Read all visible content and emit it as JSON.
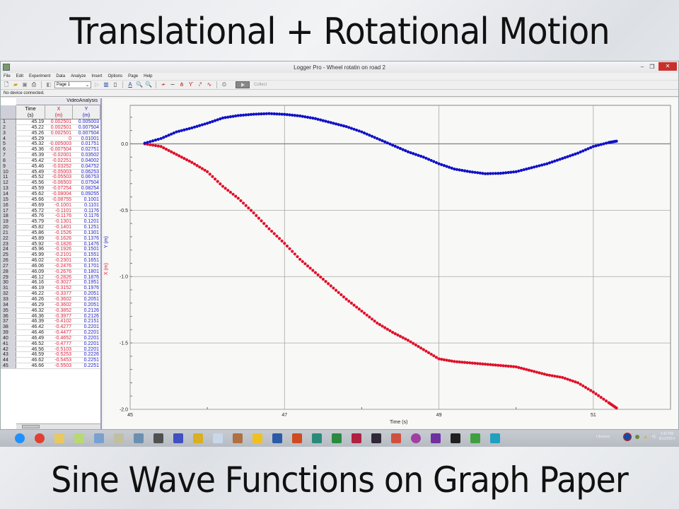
{
  "slide": {
    "title": "Translational + Rotational Motion",
    "subtitle": "Sine Wave Functions on Graph Paper"
  },
  "window": {
    "title": "Logger Pro - Wheel rotatin on road 2",
    "controls": {
      "minimize": "–",
      "restore": "❐",
      "close": "✕"
    }
  },
  "menu": [
    "File",
    "Edit",
    "Experiment",
    "Data",
    "Analyze",
    "Insert",
    "Options",
    "Page",
    "Help"
  ],
  "toolbar": {
    "page_select": "Page 1",
    "collect_label": "Collect"
  },
  "status": "No device connected.",
  "table": {
    "dataset_name": "VideoAnalysis",
    "columns": [
      {
        "name": "Time",
        "unit": "(s)"
      },
      {
        "name": "X",
        "unit": "(m)"
      },
      {
        "name": "Y",
        "unit": "(m)"
      }
    ],
    "rows": [
      [
        "1",
        "45.19",
        "0.002501",
        "0.005003"
      ],
      [
        "2",
        "45.22",
        "0.002501",
        "0.007504"
      ],
      [
        "3",
        "45.26",
        "0.002501",
        "0.007504"
      ],
      [
        "4",
        "45.29",
        "0",
        "0.01001"
      ],
      [
        "5",
        "45.32",
        "-0.005003",
        "0.01751"
      ],
      [
        "6",
        "45.36",
        "-0.007504",
        "0.02751"
      ],
      [
        "7",
        "45.39",
        "-0.02001",
        "0.03502"
      ],
      [
        "8",
        "45.42",
        "-0.02251",
        "0.04002"
      ],
      [
        "9",
        "45.46",
        "-0.03252",
        "0.04752"
      ],
      [
        "10",
        "45.49",
        "-0.05003",
        "0.06253"
      ],
      [
        "11",
        "45.52",
        "-0.05503",
        "0.06753"
      ],
      [
        "12",
        "45.56",
        "-0.06503",
        "0.07504"
      ],
      [
        "13",
        "45.59",
        "-0.07254",
        "0.08254"
      ],
      [
        "14",
        "45.62",
        "-0.08004",
        "0.09255"
      ],
      [
        "15",
        "45.66",
        "-0.08755",
        "0.1001"
      ],
      [
        "16",
        "45.69",
        "-0.1001",
        "0.1101"
      ],
      [
        "17",
        "45.72",
        "-0.1101",
        "0.1176"
      ],
      [
        "18",
        "45.76",
        "-0.1176",
        "0.1176"
      ],
      [
        "19",
        "45.79",
        "-0.1301",
        "0.1201"
      ],
      [
        "20",
        "45.82",
        "-0.1401",
        "0.1251"
      ],
      [
        "21",
        "45.86",
        "-0.1526",
        "0.1301"
      ],
      [
        "22",
        "45.89",
        "-0.1626",
        "0.1376"
      ],
      [
        "23",
        "45.92",
        "-0.1826",
        "0.1476"
      ],
      [
        "24",
        "45.96",
        "-0.1926",
        "0.1501"
      ],
      [
        "25",
        "45.99",
        "-0.2101",
        "0.1551"
      ],
      [
        "26",
        "46.02",
        "-0.2301",
        "0.1651"
      ],
      [
        "27",
        "46.06",
        "-0.2476",
        "0.1701"
      ],
      [
        "28",
        "46.09",
        "-0.2676",
        "0.1801"
      ],
      [
        "29",
        "46.12",
        "-0.2826",
        "0.1876"
      ],
      [
        "30",
        "46.16",
        "-0.3027",
        "0.1951"
      ],
      [
        "31",
        "46.19",
        "-0.3152",
        "0.1976"
      ],
      [
        "32",
        "46.22",
        "-0.3377",
        "0.2051"
      ],
      [
        "33",
        "46.26",
        "-0.3602",
        "0.2051"
      ],
      [
        "34",
        "46.29",
        "-0.3602",
        "0.2051"
      ],
      [
        "35",
        "46.32",
        "-0.3852",
        "0.2126"
      ],
      [
        "36",
        "46.36",
        "-0.3977",
        "0.2126"
      ],
      [
        "37",
        "46.39",
        "-0.4102",
        "0.2151"
      ],
      [
        "38",
        "46.42",
        "-0.4277",
        "0.2201"
      ],
      [
        "39",
        "46.46",
        "-0.4477",
        "0.2201"
      ],
      [
        "40",
        "46.49",
        "-0.4652",
        "0.2201"
      ],
      [
        "41",
        "46.52",
        "-0.4777",
        "0.2201"
      ],
      [
        "42",
        "46.56",
        "-0.5103",
        "0.2201"
      ],
      [
        "43",
        "46.59",
        "-0.5253",
        "0.2226"
      ],
      [
        "44",
        "46.62",
        "-0.5453",
        "0.2251"
      ],
      [
        "45",
        "46.66",
        "-0.5503",
        "0.2251"
      ]
    ]
  },
  "graph": {
    "y_axis_label_x": "X (m)",
    "y_axis_label_y": "Y (m)",
    "x_axis_label": "Time (s)",
    "colors": {
      "x_series": "#e0102a",
      "y_series": "#1010c8",
      "grid": "#a8a8a8",
      "zero_line": "#8a8a8a"
    }
  },
  "taskbar": {
    "icons": [
      "ie-icon",
      "chrome-icon",
      "file-explorer-icon",
      "sticky-notes-icon",
      "calculator-icon",
      "paint-icon",
      "photo-viewer-icon",
      "snipping-tool-icon",
      "connect-icon",
      "media-icon",
      "notepad-icon",
      "logger-pro-icon",
      "globe-app-icon",
      "word-icon",
      "powerpoint-icon",
      "publisher-icon",
      "excel-icon",
      "access-icon",
      "audio-app-icon",
      "pdf-icon",
      "firefox-like-icon",
      "onenote-icon",
      "7zip-icon",
      "green-app-icon",
      "headphones-app-icon"
    ],
    "tray_label": "Libraries",
    "clock_time": "1:42 PM",
    "clock_date": "8/13/2014"
  },
  "chart_data": {
    "type": "scatter",
    "title": "",
    "xlabel": "Time (s)",
    "ylabel": "X (m) / Y (m)",
    "xlim": [
      45,
      52
    ],
    "ylim": [
      -2.0,
      0.29
    ],
    "x_ticks": [
      "45",
      "47",
      "49",
      "51"
    ],
    "y_ticks": [
      "0.0",
      "-0.5",
      "-1.0",
      "-1.5",
      "-2.0"
    ],
    "grid": true,
    "legend": "none (axis labels colored by series)",
    "series": [
      {
        "name": "X (m)",
        "color": "#e0102a",
        "x": [
          45.19,
          45.4,
          45.6,
          45.8,
          46.0,
          46.2,
          46.4,
          46.6,
          46.8,
          47.0,
          47.2,
          47.4,
          47.6,
          47.8,
          48.0,
          48.2,
          48.4,
          48.6,
          48.8,
          49.0,
          49.2,
          49.4,
          49.6,
          49.8,
          50.0,
          50.2,
          50.4,
          50.6,
          50.8,
          51.0,
          51.2,
          51.3
        ],
        "values": [
          0.0,
          -0.02,
          -0.08,
          -0.14,
          -0.21,
          -0.32,
          -0.41,
          -0.52,
          -0.64,
          -0.75,
          -0.87,
          -0.97,
          -1.07,
          -1.17,
          -1.26,
          -1.35,
          -1.42,
          -1.48,
          -1.55,
          -1.62,
          -1.64,
          -1.65,
          -1.66,
          -1.67,
          -1.68,
          -1.71,
          -1.74,
          -1.76,
          -1.8,
          -1.87,
          -1.95,
          -1.99
        ]
      },
      {
        "name": "Y (m)",
        "color": "#1010c8",
        "x": [
          45.19,
          45.4,
          45.6,
          45.8,
          46.0,
          46.2,
          46.4,
          46.6,
          46.8,
          47.0,
          47.2,
          47.4,
          47.6,
          47.8,
          48.0,
          48.2,
          48.4,
          48.6,
          48.8,
          49.0,
          49.2,
          49.4,
          49.6,
          49.8,
          50.0,
          50.2,
          50.4,
          50.6,
          50.8,
          51.0,
          51.2,
          51.3
        ],
        "values": [
          0.005,
          0.04,
          0.09,
          0.12,
          0.155,
          0.195,
          0.213,
          0.223,
          0.228,
          0.222,
          0.21,
          0.19,
          0.16,
          0.13,
          0.09,
          0.04,
          -0.01,
          -0.06,
          -0.1,
          -0.15,
          -0.19,
          -0.21,
          -0.225,
          -0.222,
          -0.21,
          -0.18,
          -0.15,
          -0.11,
          -0.07,
          -0.02,
          0.01,
          0.02
        ]
      }
    ]
  }
}
